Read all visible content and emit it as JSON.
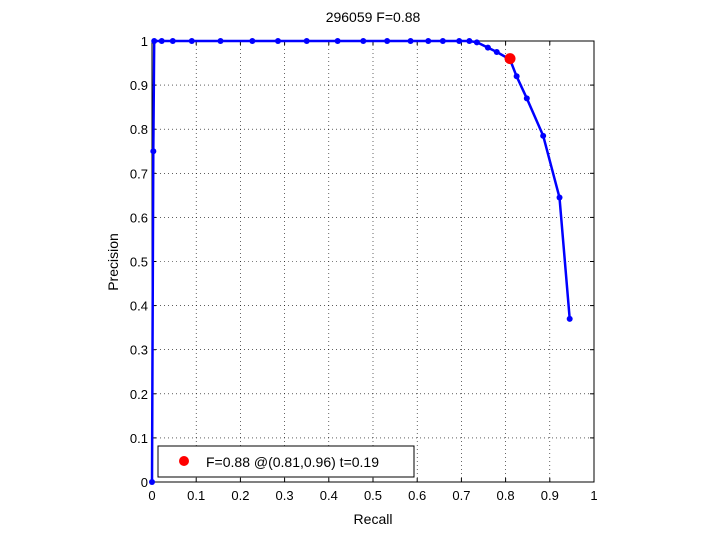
{
  "chart_data": {
    "type": "line",
    "title": "296059 F=0.88",
    "xlabel": "Recall",
    "ylabel": "Precision",
    "xlim": [
      0,
      1
    ],
    "ylim": [
      0,
      1
    ],
    "xticks": [
      0,
      0.1,
      0.2,
      0.3,
      0.4,
      0.5,
      0.6,
      0.7,
      0.8,
      0.9,
      1
    ],
    "yticks": [
      0,
      0.1,
      0.2,
      0.3,
      0.4,
      0.5,
      0.6,
      0.7,
      0.8,
      0.9,
      1
    ],
    "grid": true,
    "series": [
      {
        "color": "#0000ff",
        "marker": "dot",
        "x": [
          0,
          0.003,
          0.005,
          0.022,
          0.047,
          0.09,
          0.155,
          0.227,
          0.285,
          0.35,
          0.42,
          0.478,
          0.532,
          0.585,
          0.625,
          0.658,
          0.695,
          0.718,
          0.735,
          0.76,
          0.78,
          0.81,
          0.825,
          0.848,
          0.885,
          0.922,
          0.945
        ],
        "y": [
          0,
          0.75,
          1.0,
          1.0,
          1.0,
          1.0,
          1.0,
          1.0,
          1.0,
          1.0,
          1.0,
          1.0,
          1.0,
          1.0,
          1.0,
          1.0,
          1.0,
          1.0,
          0.997,
          0.985,
          0.975,
          0.958,
          0.92,
          0.87,
          0.785,
          0.645,
          0.37
        ]
      }
    ],
    "best_point": {
      "x": 0.81,
      "y": 0.96,
      "color": "#ff0000"
    },
    "legend": {
      "position": "bottom-left",
      "label": "F=0.88 @(0.81,0.96) t=0.19"
    }
  }
}
